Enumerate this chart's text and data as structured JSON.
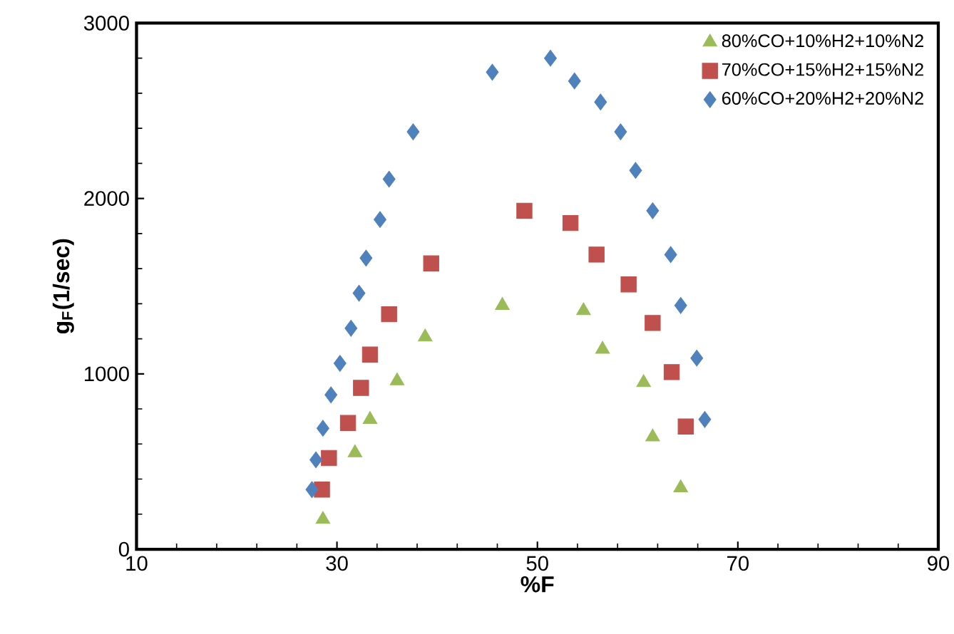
{
  "chart_data": {
    "type": "scatter",
    "xlabel": "%F",
    "ylabel": "g$_{F}$(1/sec)",
    "xlim": [
      10,
      90
    ],
    "xticks": [
      10,
      30,
      50,
      70,
      90
    ],
    "ylim": [
      0,
      3000
    ],
    "yticks": [
      0,
      1000,
      2000,
      3000
    ],
    "grid": false,
    "legend": "top right",
    "series": [
      {
        "name": "80%CO+10%H2+10%N2",
        "color": "#9bbb59",
        "marker": "triangle",
        "x": [
          28.6,
          31.8,
          33.3,
          36.0,
          38.8,
          46.5,
          54.6,
          56.5,
          60.6,
          61.5,
          64.3
        ],
        "values": [
          170,
          550,
          740,
          960,
          1210,
          1390,
          1360,
          1140,
          950,
          640,
          350
        ]
      },
      {
        "name": "70%CO+15%H2+15%N2",
        "color": "#c0504d",
        "marker": "square",
        "x": [
          28.5,
          29.2,
          31.1,
          32.4,
          33.3,
          35.2,
          39.4,
          48.7,
          53.3,
          55.9,
          59.1,
          61.5,
          63.4,
          64.8
        ],
        "values": [
          340,
          520,
          720,
          920,
          1110,
          1340,
          1630,
          1930,
          1860,
          1680,
          1510,
          1290,
          1010,
          700
        ]
      },
      {
        "name": "60%CO+20%H2+20%N2",
        "color": "#4f81bd",
        "marker": "diamond",
        "x": [
          27.5,
          27.9,
          28.6,
          29.4,
          30.3,
          31.4,
          32.2,
          32.9,
          34.3,
          35.2,
          37.6,
          45.5,
          51.3,
          53.7,
          56.3,
          58.3,
          59.8,
          61.5,
          63.3,
          64.3,
          65.9,
          66.7
        ],
        "values": [
          340,
          510,
          690,
          880,
          1060,
          1260,
          1460,
          1660,
          1880,
          2110,
          2380,
          2720,
          2800,
          2670,
          2550,
          2380,
          2160,
          1930,
          1680,
          1390,
          1090,
          740
        ]
      }
    ]
  }
}
